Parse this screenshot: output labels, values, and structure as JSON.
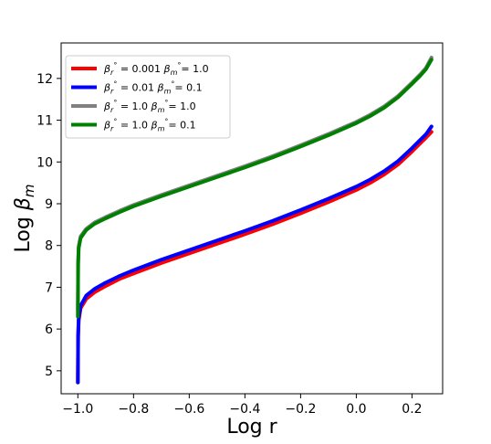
{
  "chart_data": {
    "type": "line",
    "xlabel": "Log r",
    "ylabel": "Log βm",
    "xlim": [
      -1.06,
      0.31
    ],
    "ylim": [
      4.45,
      12.85
    ],
    "xticks": [
      -1.0,
      -0.8,
      -0.6,
      -0.4,
      -0.2,
      0.0,
      0.2
    ],
    "xtick_labels": [
      "−1.0",
      "−0.8",
      "−0.6",
      "−0.4",
      "−0.2",
      "0.0",
      "0.2"
    ],
    "yticks": [
      5,
      6,
      7,
      8,
      9,
      10,
      11,
      12
    ],
    "ytick_labels": [
      "5",
      "6",
      "7",
      "8",
      "9",
      "10",
      "11",
      "12"
    ],
    "grid": false,
    "legend_position": "top-left",
    "series": [
      {
        "name": "βr° = 0.001 βm° = 1.0",
        "color": "#ff0000",
        "points": [
          [
            -1.0,
            4.72
          ],
          [
            -0.999,
            5.8
          ],
          [
            -0.997,
            6.2
          ],
          [
            -0.99,
            6.5
          ],
          [
            -0.97,
            6.72
          ],
          [
            -0.94,
            6.88
          ],
          [
            -0.9,
            7.03
          ],
          [
            -0.85,
            7.2
          ],
          [
            -0.8,
            7.33
          ],
          [
            -0.7,
            7.58
          ],
          [
            -0.6,
            7.81
          ],
          [
            -0.5,
            8.04
          ],
          [
            -0.4,
            8.27
          ],
          [
            -0.3,
            8.51
          ],
          [
            -0.2,
            8.77
          ],
          [
            -0.1,
            9.04
          ],
          [
            0.0,
            9.33
          ],
          [
            0.05,
            9.5
          ],
          [
            0.1,
            9.7
          ],
          [
            0.15,
            9.94
          ],
          [
            0.2,
            10.25
          ],
          [
            0.23,
            10.45
          ],
          [
            0.25,
            10.58
          ],
          [
            0.27,
            10.72
          ]
        ]
      },
      {
        "name": "βr° = 0.01 βm° = 0.1",
        "color": "#0000ff",
        "points": [
          [
            -1.0,
            4.72
          ],
          [
            -0.999,
            5.85
          ],
          [
            -0.997,
            6.25
          ],
          [
            -0.99,
            6.56
          ],
          [
            -0.97,
            6.8
          ],
          [
            -0.94,
            6.96
          ],
          [
            -0.9,
            7.11
          ],
          [
            -0.85,
            7.27
          ],
          [
            -0.8,
            7.41
          ],
          [
            -0.7,
            7.66
          ],
          [
            -0.6,
            7.89
          ],
          [
            -0.5,
            8.12
          ],
          [
            -0.4,
            8.35
          ],
          [
            -0.3,
            8.59
          ],
          [
            -0.2,
            8.85
          ],
          [
            -0.1,
            9.12
          ],
          [
            0.0,
            9.41
          ],
          [
            0.05,
            9.58
          ],
          [
            0.1,
            9.78
          ],
          [
            0.15,
            10.02
          ],
          [
            0.2,
            10.33
          ],
          [
            0.23,
            10.53
          ],
          [
            0.25,
            10.66
          ],
          [
            0.27,
            10.85
          ]
        ]
      },
      {
        "name": "βr° = 1.0 βm° = 1.0",
        "color": "#808080",
        "points": [
          [
            -1.0,
            6.45
          ],
          [
            -0.999,
            7.6
          ],
          [
            -0.997,
            7.98
          ],
          [
            -0.99,
            8.22
          ],
          [
            -0.97,
            8.4
          ],
          [
            -0.94,
            8.55
          ],
          [
            -0.9,
            8.68
          ],
          [
            -0.85,
            8.83
          ],
          [
            -0.8,
            8.97
          ],
          [
            -0.7,
            9.21
          ],
          [
            -0.6,
            9.44
          ],
          [
            -0.5,
            9.67
          ],
          [
            -0.4,
            9.9
          ],
          [
            -0.3,
            10.14
          ],
          [
            -0.2,
            10.4
          ],
          [
            -0.1,
            10.67
          ],
          [
            0.0,
            10.96
          ],
          [
            0.05,
            11.13
          ],
          [
            0.1,
            11.33
          ],
          [
            0.15,
            11.58
          ],
          [
            0.2,
            11.9
          ],
          [
            0.23,
            12.1
          ],
          [
            0.25,
            12.25
          ],
          [
            0.27,
            12.5
          ]
        ]
      },
      {
        "name": "βr° = 1.0 βm° = 0.1",
        "color": "#008000",
        "points": [
          [
            -1.0,
            6.3
          ],
          [
            -0.999,
            7.55
          ],
          [
            -0.997,
            7.94
          ],
          [
            -0.99,
            8.18
          ],
          [
            -0.97,
            8.37
          ],
          [
            -0.94,
            8.52
          ],
          [
            -0.9,
            8.65
          ],
          [
            -0.85,
            8.8
          ],
          [
            -0.8,
            8.94
          ],
          [
            -0.7,
            9.18
          ],
          [
            -0.6,
            9.41
          ],
          [
            -0.5,
            9.64
          ],
          [
            -0.4,
            9.87
          ],
          [
            -0.3,
            10.11
          ],
          [
            -0.2,
            10.37
          ],
          [
            -0.1,
            10.64
          ],
          [
            0.0,
            10.93
          ],
          [
            0.05,
            11.1
          ],
          [
            0.1,
            11.3
          ],
          [
            0.15,
            11.55
          ],
          [
            0.2,
            11.87
          ],
          [
            0.23,
            12.07
          ],
          [
            0.25,
            12.22
          ],
          [
            0.27,
            12.45
          ]
        ]
      }
    ]
  },
  "legend": {
    "entries": [
      {
        "color": "#ff0000",
        "br_val": "= 0.001",
        "bm_val": "= 1.0"
      },
      {
        "color": "#0000ff",
        "br_val": "= 0.01",
        "bm_val": "= 0.1"
      },
      {
        "color": "#808080",
        "br_val": "= 1.0",
        "bm_val": "= 1.0"
      },
      {
        "color": "#008000",
        "br_val": "= 1.0",
        "bm_val": "= 0.1"
      }
    ]
  }
}
